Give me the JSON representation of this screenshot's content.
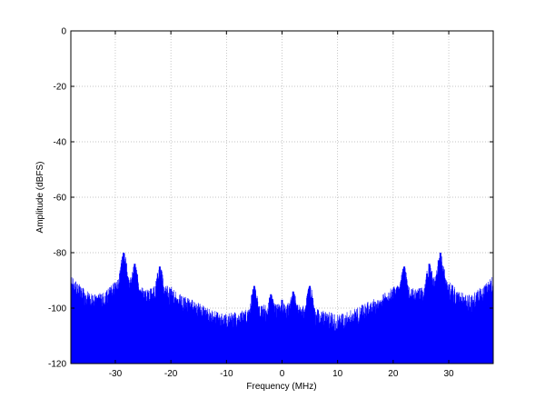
{
  "chart_data": {
    "type": "line",
    "title": "",
    "xlabel": "Frequency (MHz)",
    "ylabel": "Amplitude (dBFS)",
    "xlim": [
      -38,
      38
    ],
    "ylim": [
      -120,
      0
    ],
    "xticks": [
      -30,
      -20,
      -10,
      0,
      10,
      20,
      30
    ],
    "yticks": [
      0,
      -20,
      -40,
      -60,
      -80,
      -100,
      -120
    ],
    "xtick_labels": [
      "-30",
      "-20",
      "-10",
      "0",
      "10",
      "20",
      "30"
    ],
    "ytick_labels": [
      "0",
      "-20",
      "-40",
      "-60",
      "-80",
      "-100",
      "-120"
    ],
    "grid": true,
    "series": [
      {
        "color": "#0000ff",
        "noise_floor": {
          "x": [
            -38,
            -36,
            -34,
            -32,
            -30,
            -28,
            -26,
            -24,
            -22,
            -20,
            -18,
            -16,
            -14,
            -12,
            -10,
            -8,
            -6,
            -4,
            -2,
            0,
            2,
            4,
            6,
            8,
            10,
            12,
            14,
            16,
            18,
            20,
            22,
            24,
            26,
            28,
            30,
            32,
            34,
            36,
            38
          ],
          "y": [
            -93,
            -97,
            -100,
            -99,
            -95,
            -92,
            -97,
            -98,
            -96,
            -97,
            -100,
            -102,
            -104,
            -106,
            -107,
            -106,
            -105,
            -104,
            -103,
            -103,
            -103,
            -104,
            -105,
            -106,
            -107,
            -106,
            -104,
            -102,
            -100,
            -97,
            -96,
            -98,
            -97,
            -92,
            -95,
            -99,
            -100,
            -97,
            -93
          ]
        },
        "peaks": [
          {
            "x": -28.5,
            "y": -80
          },
          {
            "x": -26.5,
            "y": -84
          },
          {
            "x": -22,
            "y": -85
          },
          {
            "x": -5,
            "y": -92
          },
          {
            "x": -2,
            "y": -95
          },
          {
            "x": 0,
            "y": -97
          },
          {
            "x": 2,
            "y": -94
          },
          {
            "x": 5,
            "y": -92
          },
          {
            "x": 22,
            "y": -85
          },
          {
            "x": 26.5,
            "y": -84
          },
          {
            "x": 28.5,
            "y": -80
          }
        ],
        "floor_min": -120
      }
    ]
  }
}
